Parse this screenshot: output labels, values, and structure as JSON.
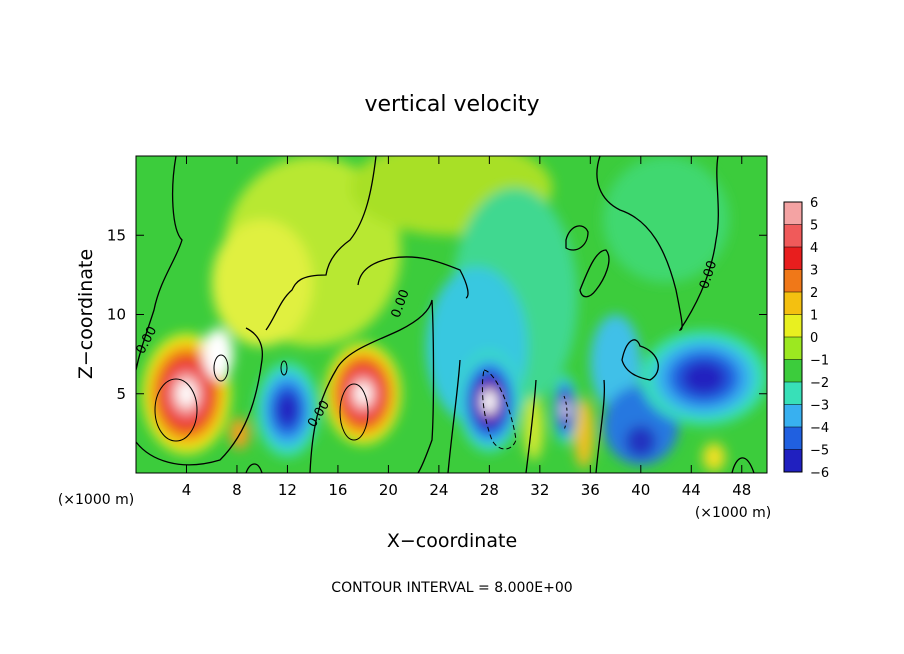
{
  "chart_data": {
    "type": "heatmap",
    "title": "vertical velocity",
    "xlabel": "X−coordinate",
    "ylabel": "Z−coordinate",
    "x_units_left": "(×1000 m)",
    "x_units_right": "(×1000 m)",
    "xlim": [
      0,
      50
    ],
    "ylim": [
      0,
      20
    ],
    "x_ticks": [
      4,
      8,
      12,
      16,
      20,
      24,
      28,
      32,
      36,
      40,
      44,
      48
    ],
    "y_ticks": [
      5,
      10,
      15
    ],
    "colorbar": {
      "levels": [
        6,
        5,
        4,
        3,
        2,
        1,
        0,
        -1,
        -2,
        -3,
        -4,
        -5,
        -6
      ],
      "labels": [
        "6",
        "5",
        "4",
        "3",
        "2",
        "1",
        "0",
        "−1",
        "−2",
        "−3",
        "−4",
        "−5",
        "−6"
      ],
      "colors": [
        "#f4a3a3",
        "#f05a5a",
        "#e81e1e",
        "#f07818",
        "#f4c010",
        "#e8f020",
        "#9ce820",
        "#3ccc3c",
        "#38e0b8",
        "#38b0f0",
        "#2060e0",
        "#2020c0",
        "#8020a0"
      ]
    },
    "contour_labels": [
      "0.00",
      "0.00",
      "0.00",
      "0.00"
    ],
    "contour_interval_text": "CONTOUR INTERVAL = 8.000E+00",
    "features": [
      {
        "type": "updraft",
        "x": 4,
        "z": 5,
        "rx": 3.5,
        "rz": 3.8,
        "peak": 8
      },
      {
        "type": "updraft",
        "x": 18,
        "z": 5,
        "rx": 3,
        "rz": 3.2,
        "peak": 8
      },
      {
        "type": "downdraft",
        "x": 28,
        "z": 4.5,
        "rx": 2.5,
        "rz": 3.2,
        "peak": -8
      },
      {
        "type": "downdraft",
        "x": 34,
        "z": 4,
        "rx": 1,
        "rz": 2.2,
        "peak": -6
      },
      {
        "type": "downdraft",
        "x": 12,
        "z": 4,
        "rx": 2.5,
        "rz": 3,
        "peak": -4
      },
      {
        "type": "downdraft",
        "x": 45,
        "z": 6,
        "rx": 5,
        "rz": 3,
        "peak": -4
      }
    ]
  }
}
